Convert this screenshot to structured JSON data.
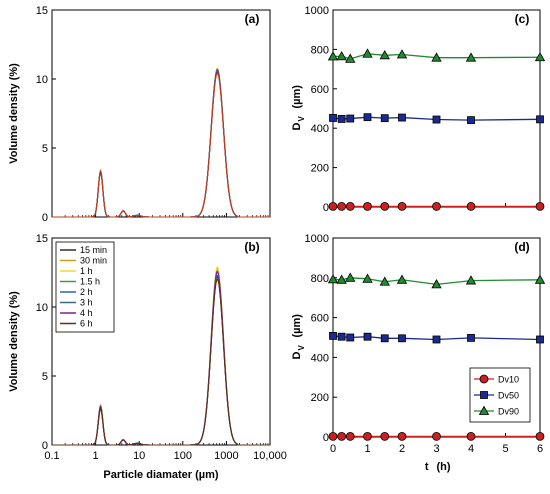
{
  "chart_data": [
    {
      "panel": "(a)",
      "type": "line",
      "xscale": "log",
      "xlim": [
        0.1,
        10000
      ],
      "ylim": [
        0,
        15
      ],
      "yticks": [
        0,
        5,
        10,
        15
      ],
      "ylabel": "Volume density (%)",
      "xlabel": "",
      "x_tick_labels_shown": false,
      "series": [
        {
          "name": "15 min",
          "color": "#3a2e1a",
          "peak1": 3.3,
          "peak2": 10.6
        },
        {
          "name": "30 min",
          "color": "#c8a020",
          "peak1": 3.4,
          "peak2": 10.7
        },
        {
          "name": "1 h",
          "color": "#e8d840",
          "peak1": 3.3,
          "peak2": 10.8
        },
        {
          "name": "1.5 h",
          "color": "#30a040",
          "peak1": 3.2,
          "peak2": 10.6
        },
        {
          "name": "2 h",
          "color": "#3060c0",
          "peak1": 3.3,
          "peak2": 10.7
        },
        {
          "name": "3 h",
          "color": "#406878",
          "peak1": 3.3,
          "peak2": 10.6
        },
        {
          "name": "4 h",
          "color": "#802090",
          "peak1": 3.2,
          "peak2": 10.5
        },
        {
          "name": "6 h",
          "color": "#c0401a",
          "peak1": 3.3,
          "peak2": 10.4
        }
      ]
    },
    {
      "panel": "(b)",
      "type": "line",
      "xscale": "log",
      "xlim": [
        0.1,
        10000
      ],
      "ylim": [
        0,
        15
      ],
      "yticks": [
        0,
        5,
        10,
        15
      ],
      "ylabel": "Volume density (%)",
      "xlabel": "Particle diamater (µm)",
      "xtick_labels": [
        "0.1",
        "1",
        "10",
        "100",
        "1000",
        "10,000"
      ],
      "legend": "top-left",
      "series": [
        {
          "name": "15 min",
          "color": "#3a2e1a",
          "peak1": 2.7,
          "peak2": 12.2
        },
        {
          "name": "30 min",
          "color": "#c8a020",
          "peak1": 2.9,
          "peak2": 12.8
        },
        {
          "name": "1 h",
          "color": "#e8d840",
          "peak1": 2.8,
          "peak2": 12.9
        },
        {
          "name": "1.5 h",
          "color": "#30a040",
          "peak1": 2.8,
          "peak2": 12.5
        },
        {
          "name": "2 h",
          "color": "#3060c0",
          "peak1": 2.6,
          "peak2": 12.3
        },
        {
          "name": "3 h",
          "color": "#406878",
          "peak1": 2.6,
          "peak2": 12.1
        },
        {
          "name": "4 h",
          "color": "#802090",
          "peak1": 2.8,
          "peak2": 12.6
        },
        {
          "name": "6 h",
          "color": "#603018",
          "peak1": 2.7,
          "peak2": 12.0
        }
      ]
    },
    {
      "panel": "(c)",
      "type": "line",
      "xlim": [
        0,
        6
      ],
      "ylim": [
        0,
        1000
      ],
      "yticks": [
        0,
        200,
        400,
        600,
        800,
        1000
      ],
      "ylabel_main": "D",
      "ylabel_sub": "V",
      "ylabel_unit": "(µm)",
      "xlabel": "",
      "x_tick_labels_shown": false,
      "x": [
        0,
        0.25,
        0.5,
        1,
        1.5,
        2,
        3,
        4,
        6
      ],
      "series": [
        {
          "name": "Dv10",
          "marker": "circle",
          "color": "#cc2020",
          "values": [
            3,
            3,
            3,
            3,
            3,
            3,
            3,
            3,
            3
          ]
        },
        {
          "name": "Dv50",
          "marker": "square",
          "color": "#1a2a90",
          "values": [
            452,
            447,
            449,
            456,
            451,
            454,
            444,
            441,
            445
          ]
        },
        {
          "name": "Dv90",
          "marker": "triangle",
          "color": "#208a30",
          "values": [
            764,
            765,
            752,
            778,
            770,
            774,
            758,
            758,
            760
          ]
        }
      ]
    },
    {
      "panel": "(d)",
      "type": "line",
      "xlim": [
        0,
        6
      ],
      "ylim": [
        0,
        1000
      ],
      "yticks": [
        0,
        200,
        400,
        600,
        800,
        1000
      ],
      "ylabel_main": "D",
      "ylabel_sub": "V",
      "ylabel_unit": "(µm)",
      "xlabel_main": "t",
      "xlabel_unit": "(h)",
      "xticks": [
        0,
        1,
        2,
        3,
        4,
        5,
        6
      ],
      "legend": "bottom-right",
      "x": [
        0,
        0.25,
        0.5,
        1,
        1.5,
        2,
        3,
        4,
        6
      ],
      "series": [
        {
          "name": "Dv10",
          "marker": "circle",
          "color": "#cc2020",
          "values": [
            3,
            3,
            3,
            3,
            3,
            3,
            3,
            3,
            3
          ]
        },
        {
          "name": "Dv50",
          "marker": "square",
          "color": "#1a2a90",
          "values": [
            508,
            504,
            500,
            504,
            496,
            496,
            490,
            498,
            490
          ]
        },
        {
          "name": "Dv90",
          "marker": "triangle",
          "color": "#208a30",
          "values": [
            792,
            790,
            800,
            795,
            780,
            790,
            767,
            786,
            790
          ]
        }
      ]
    }
  ]
}
